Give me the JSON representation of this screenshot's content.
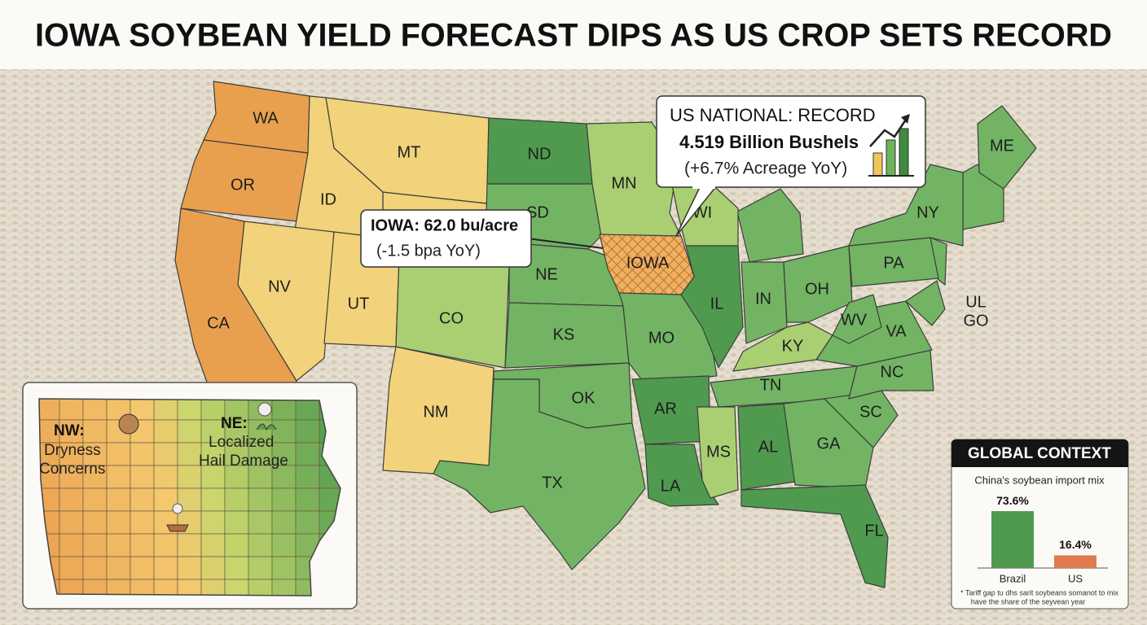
{
  "title": "IOWA SOYBEAN YIELD FORECAST DIPS AS US CROP SETS RECORD",
  "map": {
    "states": [
      "WA",
      "OR",
      "CA",
      "MT",
      "ID",
      "NV",
      "UT",
      "CO",
      "NM",
      "ND",
      "SD",
      "NE",
      "KS",
      "OK",
      "TX",
      "MN",
      "IOWA",
      "WI",
      "MO",
      "AR",
      "LA",
      "IL",
      "IN",
      "OH",
      "KY",
      "TN",
      "MS",
      "AL",
      "GA",
      "FL",
      "SC",
      "NC",
      "VA",
      "WV",
      "PA",
      "NY",
      "ME"
    ],
    "extra_labels": [
      "UL",
      "GO"
    ]
  },
  "national_callout": {
    "heading": "US NATIONAL: RECORD",
    "total": "4.519 Billion Bushels",
    "change": "(+6.7% Acreage YoY)"
  },
  "iowa_callout": {
    "heading": "IOWA: 62.0 bu/acre",
    "change": "(-1.5 bpa YoY)"
  },
  "inset": {
    "nw_label": "NW:",
    "nw_text": [
      "Dryness",
      "Concerns"
    ],
    "ne_label": "NE:",
    "ne_text": [
      "Localized",
      "Hail Damage"
    ]
  },
  "chart_data": {
    "type": "bar",
    "title": "GLOBAL CONTEXT",
    "subtitle": "China's soybean import mix",
    "categories": [
      "Brazil",
      "US"
    ],
    "values": [
      73.6,
      16.4
    ],
    "value_labels": [
      "73.6%",
      "16.4%"
    ],
    "colors": [
      "#4f9a4f",
      "#e07b4f"
    ],
    "footnote": [
      "* Tariff gap tu dhs sarit soybeans somanot to mix",
      "have the share of the seyvean year"
    ]
  }
}
